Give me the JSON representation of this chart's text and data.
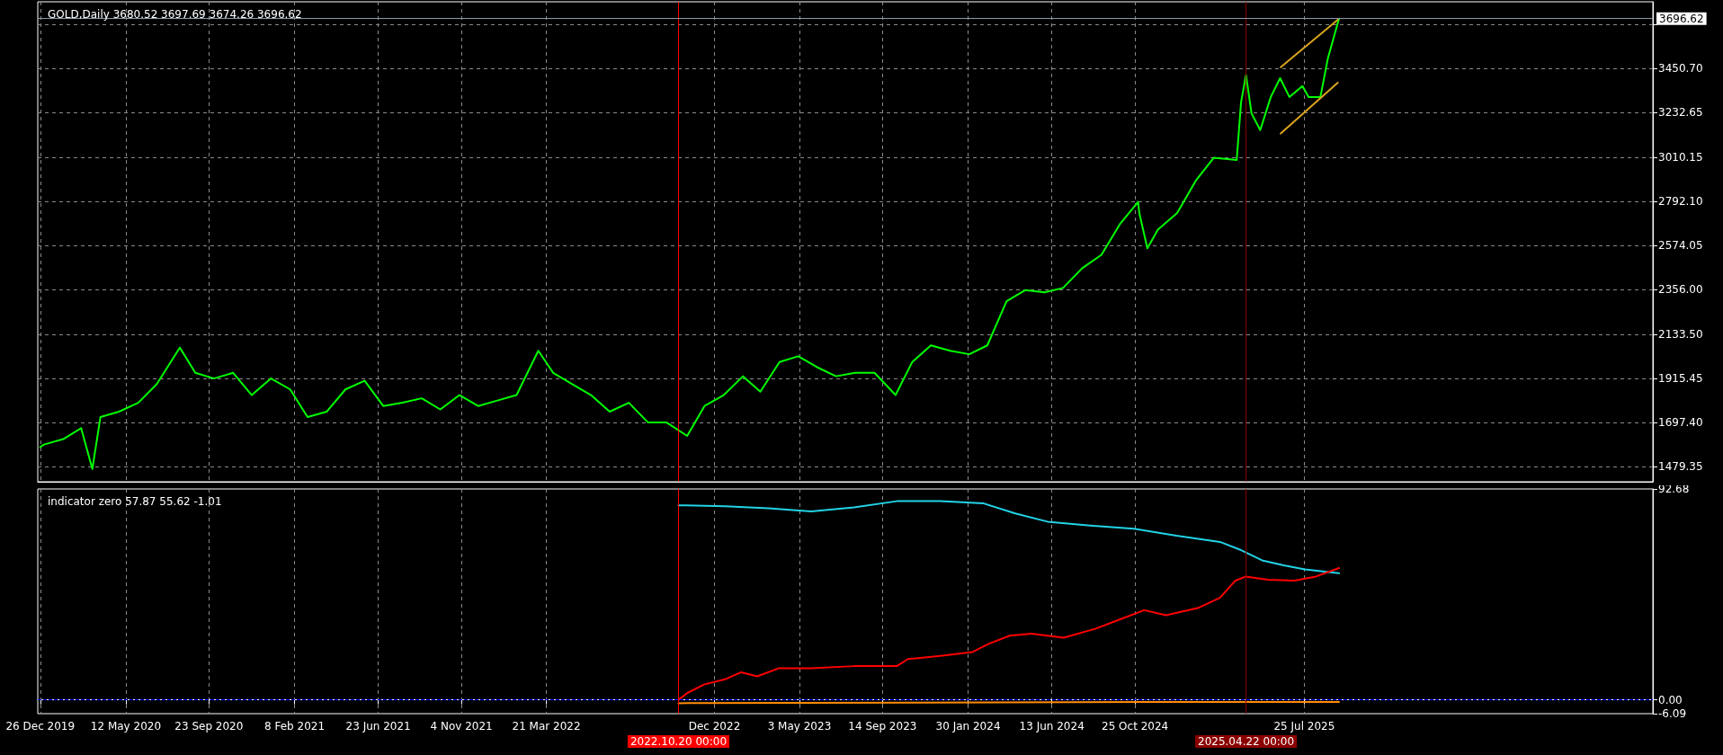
{
  "chart_data": [
    {
      "type": "line",
      "title": "GOLD,Daily 3680.52 3697.69 3674.26 3696.62",
      "xlim": [
        "2019-12-22",
        "2027-02-07"
      ],
      "ylim": [
        1405,
        3780
      ],
      "xticks": [
        {
          "value": "2019-12-26",
          "label": null
        },
        {
          "value": "2020-05-12",
          "label": null
        },
        {
          "value": "2020-09-23",
          "label": null
        },
        {
          "value": "2021-02-08",
          "label": null
        },
        {
          "value": "2021-06-23",
          "label": null
        },
        {
          "value": "2021-11-04",
          "label": null
        },
        {
          "value": "2022-03-21",
          "label": null
        },
        {
          "value": "2022-12-17",
          "label": null
        },
        {
          "value": "2023-05-03",
          "label": null
        },
        {
          "value": "2023-09-14",
          "label": null
        },
        {
          "value": "2024-01-30",
          "label": null
        },
        {
          "value": "2024-06-13",
          "label": null
        },
        {
          "value": "2024-10-25",
          "label": null
        },
        {
          "value": "2025-07-25",
          "label": null
        }
      ],
      "yticks": [
        1479.35,
        {
          "value": 1697.4,
          "label": "1697.40"
        },
        1915.45,
        {
          "value": 2133.5,
          "label": "2133.50"
        },
        {
          "value": 2356,
          "label": "2356.00"
        },
        2574.05,
        {
          "value": 2792.1,
          "label": "2792.10"
        },
        3010.15,
        3232.65,
        {
          "value": 3450.7,
          "label": "3450.70"
        },
        {
          "value": 3668.75,
          "label": null
        }
      ],
      "tick_labels": "y",
      "grid": true,
      "marker": "none",
      "line_style": "solid",
      "series": [
        {
          "color": "#00ff00",
          "x": [
            "2019-12-26",
            "2020-01-01",
            "2020-02-01",
            "2020-03-01",
            "2020-03-19",
            "2020-04-01",
            "2020-05-01",
            "2020-06-01",
            "2020-07-01",
            "2020-08-07",
            "2020-09-01",
            "2020-10-01",
            "2020-11-01",
            "2020-12-01",
            "2021-01-01",
            "2021-02-01",
            "2021-03-01",
            "2021-04-01",
            "2021-05-01",
            "2021-06-01",
            "2021-07-01",
            "2021-08-01",
            "2021-09-01",
            "2021-10-01",
            "2021-11-01",
            "2021-12-01",
            "2022-01-01",
            "2022-02-01",
            "2022-03-08",
            "2022-04-01",
            "2022-05-01",
            "2022-06-01",
            "2022-07-01",
            "2022-08-01",
            "2022-09-01",
            "2022-10-01",
            "2022-11-03",
            "2022-12-01",
            "2023-01-01",
            "2023-02-01",
            "2023-03-01",
            "2023-04-01",
            "2023-05-01",
            "2023-06-01",
            "2023-07-01",
            "2023-08-01",
            "2023-09-01",
            "2023-10-05",
            "2023-11-01",
            "2023-12-01",
            "2024-01-01",
            "2024-02-01",
            "2024-03-01",
            "2024-04-01",
            "2024-05-01",
            "2024-06-01",
            "2024-07-01",
            "2024-08-01",
            "2024-09-01",
            "2024-10-01",
            "2024-10-30",
            "2024-11-01",
            "2024-11-14",
            "2024-12-01",
            "2025-01-01",
            "2025-02-01",
            "2025-03-01",
            "2025-04-07",
            "2025-04-14",
            "2025-04-22",
            "2025-05-01",
            "2025-05-15",
            "2025-06-01",
            "2025-06-16",
            "2025-07-01",
            "2025-07-22",
            "2025-08-01",
            "2025-08-20",
            "2025-09-01",
            "2025-09-19"
          ],
          "values": [
            1577,
            1589,
            1616,
            1670,
            1468,
            1725,
            1752,
            1796,
            1889,
            2069,
            1944,
            1916,
            1944,
            1834,
            1916,
            1862,
            1725,
            1752,
            1862,
            1905,
            1780,
            1796,
            1818,
            1763,
            1834,
            1780,
            1807,
            1834,
            2053,
            1944,
            1889,
            1834,
            1752,
            1796,
            1698,
            1698,
            1632,
            1780,
            1834,
            1927,
            1851,
            1998,
            2026,
            1971,
            1927,
            1944,
            1944,
            1834,
            1998,
            2080,
            2053,
            2036,
            2080,
            2298,
            2353,
            2342,
            2364,
            2462,
            2528,
            2681,
            2790,
            2735,
            2560,
            2653,
            2735,
            2899,
            3008,
            2997,
            3281,
            3418,
            3227,
            3145,
            3309,
            3402,
            3309,
            3363,
            3309,
            3309,
            3500,
            3697
          ]
        },
        {
          "color": "#daa520",
          "x": [
            "2025-06-17",
            "2025-09-17"
          ],
          "values": [
            3456,
            3691
          ]
        },
        {
          "color": "#daa520",
          "x": [
            "2025-06-17",
            "2025-09-17"
          ],
          "values": [
            3128,
            3380
          ]
        }
      ],
      "ref_lines": [
        {
          "axis": "x",
          "value": "2022-10-20",
          "color": "#ff0000",
          "line_style": "solid"
        },
        {
          "axis": "x",
          "value": "2025-04-22",
          "color": "#8b0000",
          "line_style": "solid"
        },
        {
          "axis": "y",
          "value": 3696.62,
          "label": "3696.62",
          "color": "#8a9aa8",
          "line_style": "solid"
        }
      ]
    },
    {
      "type": "line",
      "title": "indicator zero 57.87 55.62 -1.01",
      "xlim": [
        "2019-12-22",
        "2027-02-07"
      ],
      "ylim": [
        -6.09,
        92.68
      ],
      "xticks": [
        {
          "value": "2019-12-26",
          "label": "26 Dec 2019"
        },
        {
          "value": "2020-05-12",
          "label": "12 May 2020"
        },
        {
          "value": "2020-09-23",
          "label": "23 Sep 2020"
        },
        {
          "value": "2021-02-08",
          "label": "8 Feb 2021"
        },
        {
          "value": "2021-06-23",
          "label": "23 Jun 2021"
        },
        {
          "value": "2021-11-04",
          "label": "4 Nov 2021"
        },
        {
          "value": "2022-03-21",
          "label": "21 Mar 2022"
        },
        {
          "value": "2022-12-17",
          "label": "Dec 2022"
        },
        {
          "value": "2023-05-03",
          "label": "3 May 2023"
        },
        {
          "value": "2023-09-14",
          "label": "14 Sep 2023"
        },
        {
          "value": "2024-01-30",
          "label": "30 Jan 2024"
        },
        {
          "value": "2024-06-13",
          "label": "13 Jun 2024"
        },
        {
          "value": "2024-10-25",
          "label": "25 Oct 2024"
        },
        {
          "value": "2025-07-25",
          "label": "25 Jul 2025"
        }
      ],
      "yticks": [
        92.68,
        {
          "value": 0,
          "label": "0.00"
        },
        -6.09
      ],
      "grid": "x",
      "marker": "none",
      "line_style": "solid",
      "series": [
        {
          "color": "#22d3e6",
          "x": [
            "2022-10-20",
            "2023-01-03",
            "2023-03-14",
            "2023-05-22",
            "2023-07-30",
            "2023-10-07",
            "2023-12-16",
            "2024-02-23",
            "2024-04-15",
            "2024-06-06",
            "2024-08-14",
            "2024-10-23",
            "2024-12-31",
            "2025-03-11",
            "2025-04-14",
            "2025-05-18",
            "2025-06-22",
            "2025-07-26",
            "2025-09-19"
          ],
          "values": [
            85.5,
            85.1,
            84.2,
            82.8,
            84.6,
            87.3,
            87.3,
            86.4,
            81.9,
            78.3,
            76.6,
            75.2,
            72.1,
            69.4,
            65.8,
            61.3,
            59.1,
            57.3,
            55.6
          ]
        },
        {
          "color": "#ff0000",
          "x": [
            "2022-10-20",
            "2022-11-04",
            "2022-11-30",
            "2023-01-03",
            "2023-01-29",
            "2023-02-24",
            "2023-03-31",
            "2023-05-22",
            "2023-07-30",
            "2023-10-07",
            "2023-10-25",
            "2023-12-16",
            "2024-02-06",
            "2024-03-03",
            "2024-04-06",
            "2024-05-11",
            "2024-07-02",
            "2024-08-23",
            "2024-10-05",
            "2024-11-09",
            "2024-12-14",
            "2025-02-03",
            "2025-03-11",
            "2025-04-05",
            "2025-04-22",
            "2025-05-27",
            "2025-07-09",
            "2025-08-13",
            "2025-09-19"
          ],
          "values": [
            0,
            3.1,
            6.7,
            9,
            12.1,
            10.3,
            13.9,
            13.9,
            14.8,
            14.8,
            17.9,
            19.3,
            21,
            24.6,
            28.2,
            29.1,
            27.3,
            31.3,
            35.8,
            39.4,
            37.2,
            40.3,
            44.8,
            52.4,
            54.2,
            52.8,
            52.4,
            54.2,
            57.9
          ]
        },
        {
          "color": "#ff8c00",
          "x": [
            "2022-10-20",
            "2024-11-09",
            "2025-09-19"
          ],
          "values": [
            -1.5,
            -1,
            -1
          ]
        }
      ],
      "ref_lines": [
        {
          "axis": "x",
          "value": "2022-10-20",
          "label": "2022.10.20 00:00",
          "color": "#ff0000",
          "line_style": "solid"
        },
        {
          "axis": "x",
          "value": "2025-04-22",
          "label": "2025.04.22 00:00",
          "color": "#8b0000",
          "line_style": "solid"
        },
        {
          "axis": "y",
          "value": 0,
          "color": "#0000ff",
          "line_style": "dashed"
        }
      ]
    }
  ]
}
